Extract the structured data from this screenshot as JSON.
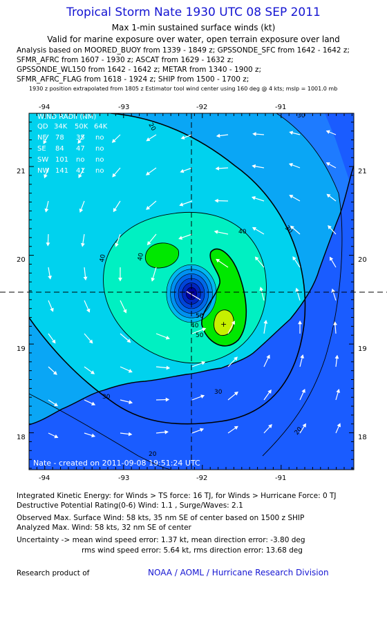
{
  "title": "Tropical Storm Nate 1930 UTC 08 SEP 2011",
  "subtitle1": "Max 1-min sustained surface winds (kt)",
  "subtitle2": "Valid for marine exposure over water, open terrain exposure over land",
  "analysis_lines": [
    "Analysis based on MOORED_BUOY from 1339 - 1849 z; GPSSONDE_SFC from 1642 - 1642 z;",
    "SFMR_AFRC from 1607 - 1930 z; ASCAT from 1629 - 1632 z;",
    "GPSSONDE_WL150 from 1642 - 1642 z; METAR from 1340 - 1900 z;",
    "SFMR_AFRC_FLAG from 1618 - 1924 z; SHIP from 1500 - 1700 z;"
  ],
  "extrapolation_note": "1930 z position extrapolated from 1805 z Estimator tool wind center using 160 deg @ 4 kts; mslp = 1001.0 mb",
  "map": {
    "lon_ticks": [
      "-94",
      "-93",
      "-92",
      "-91"
    ],
    "lat_ticks": [
      "21",
      "20",
      "19",
      "18"
    ],
    "lon_range": [
      -94.2,
      -90.0
    ],
    "lat_range": [
      17.6,
      21.6
    ],
    "center": {
      "lon": -92.1,
      "lat": 19.65
    },
    "contour_labels": [
      "20",
      "30",
      "40",
      "50",
      "50",
      "40",
      "40",
      "30",
      "20",
      "20",
      "30",
      "30",
      "40"
    ],
    "credit": "Nate - created on 2011-09-08 19:51:24 UTC",
    "colors": {
      "land": "#1a5cff",
      "shade_10_20": "#1e7bff",
      "shade_20_30": "#0aa6f5",
      "shade_30_40": "#00d2ee",
      "shade_40_50": "#00f0c2",
      "shade_50_60": "#00e800",
      "shade_60_plus": "#c6f000",
      "eye": "#0000a0"
    }
  },
  "wind_radii": {
    "title": "WIND RADII (NM)",
    "header": [
      "QD",
      "34K",
      "50K",
      "64K"
    ],
    "rows": [
      [
        "NE",
        "78",
        "35",
        "no"
      ],
      [
        "SE",
        "84",
        "47",
        "no"
      ],
      [
        "SW",
        "101",
        "no",
        "no"
      ],
      [
        "NW",
        "141",
        "41",
        "no"
      ]
    ]
  },
  "footer": {
    "ike": "Integrated Kinetic Energy:  for Winds > TS force: 16 TJ,  for Winds > Hurricane Force: 0 TJ",
    "dpr": "Destructive Potential Rating(0-6)   Wind: 1.1 , Surge/Waves: 2.1",
    "observed": "Observed Max. Surface Wind: 58 kts, 35 nm SE of center based on 1500 z SHIP",
    "analyzed": "Analyzed Max. Wind: 58 kts, 32 nm SE of center",
    "uncertainty1": "Uncertainty -> mean wind speed error: 1.37 kt,   mean direction error:  -3.80 deg",
    "uncertainty2": "rms wind speed error: 5.64 kt,   rms direction error: 13.68 deg",
    "research": "Research product of",
    "org": "NOAA / AOML / Hurricane Research Division"
  }
}
